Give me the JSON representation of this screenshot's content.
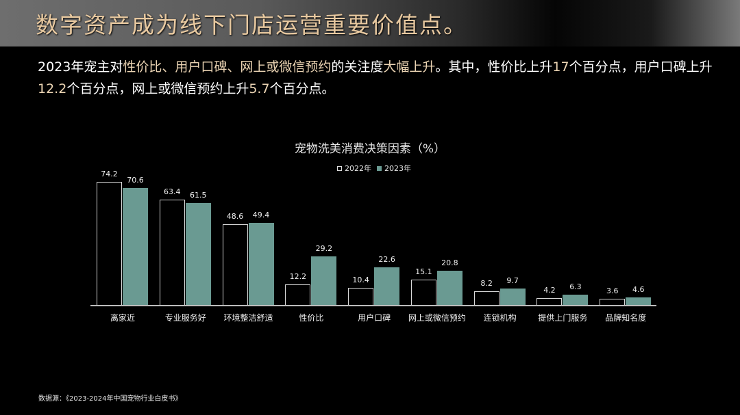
{
  "header": {
    "title": "数字资产成为线下门店运营重要价值点。"
  },
  "summary": {
    "parts": [
      {
        "text": "2023年宠主对",
        "hl": false
      },
      {
        "text": "性价比、用户口碑、网上或微信预约",
        "hl": true
      },
      {
        "text": "的关注度",
        "hl": false
      },
      {
        "text": "大幅上升",
        "hl": true
      },
      {
        "text": "。其中，性价比上升",
        "hl": false
      },
      {
        "text": "17",
        "hl": true
      },
      {
        "text": "个百分点，用户口碑上升",
        "hl": false
      },
      {
        "text": "12.2",
        "hl": true
      },
      {
        "text": "个百分点，网上或微信预约上升",
        "hl": false
      },
      {
        "text": "5.7",
        "hl": true
      },
      {
        "text": "个百分点。",
        "hl": false
      }
    ]
  },
  "colors": {
    "accent_text": "#ecd5b4",
    "title_gold": "#e8c9a0",
    "series_2023": "#6a9a92",
    "series_2022_border": "#d9d9d9"
  },
  "chart_data": {
    "type": "bar",
    "title": "宠物洗美消费决策因素（%）",
    "xlabel": "",
    "ylabel": "",
    "ylim": [
      0,
      80
    ],
    "grid": false,
    "legend_position": "top",
    "categories": [
      "离家近",
      "专业服务好",
      "环境整洁舒适",
      "性价比",
      "用户口碑",
      "网上或微信预约",
      "连锁机构",
      "提供上门服务",
      "品牌知名度"
    ],
    "series": [
      {
        "name": "2022年",
        "values": [
          74.2,
          63.4,
          48.6,
          12.2,
          10.4,
          15.1,
          8.2,
          4.2,
          3.6
        ]
      },
      {
        "name": "2023年",
        "values": [
          70.6,
          61.5,
          49.4,
          29.2,
          22.6,
          20.8,
          9.7,
          6.3,
          4.6
        ]
      }
    ]
  },
  "legend": {
    "items": [
      "2022年",
      "2023年"
    ]
  },
  "source": {
    "text": "数据源：《2023-2024年中国宠物行业白皮书》"
  }
}
